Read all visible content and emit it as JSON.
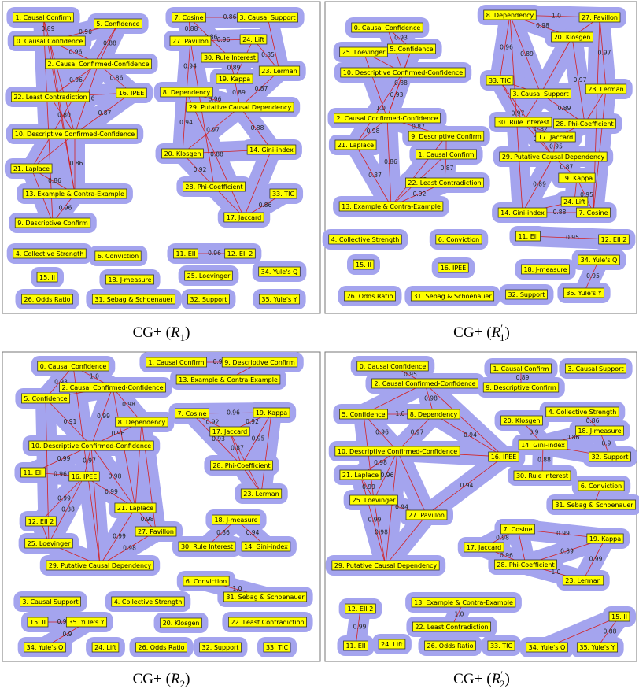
{
  "panels": [
    {
      "caption": {
        "prefix": "CG+",
        "open": "(",
        "symbol": "R",
        "prime": null,
        "subscript": "1",
        "close": ")"
      },
      "nodes": [
        "1. Causal Confirm",
        "5. Confidence",
        "0. Causal Confidence",
        "2. Causal Confirmed-Confidence",
        "22. Least Contradiction",
        "16. IPEE",
        "10. Descriptive Confirmed-Confidence",
        "21. Laplace",
        "13. Example & Contra-Example",
        "9. Descriptive Confirm",
        "4. Collective Strength",
        "6. Conviction",
        "15. II",
        "18. J-measure",
        "26. Odds Ratio",
        "31. Sebag & Schoenauer",
        "7. Cosine",
        "3. Causal Support",
        "27. Pavillon",
        "24. Lift",
        "30. Rule Interest",
        "23. Lerman",
        "19. Kappa",
        "8. Dependency",
        "29. Putative Causal Dependency",
        "20. Klosgen",
        "14. Gini-index",
        "28. Phi-Coefficient",
        "33. TIC",
        "17. Jaccard",
        "11. EII",
        "12. EII 2",
        "25. Loevinger",
        "34. Yule's Q",
        "32. Support",
        "35. Yule's Y"
      ],
      "edges": [
        {
          "from": 0,
          "to": 2,
          "label": "0.89"
        },
        {
          "from": 1,
          "to": 2,
          "label": "0.96"
        },
        {
          "from": 1,
          "to": 3,
          "label": "0.88"
        },
        {
          "from": 0,
          "to": 9
        },
        {
          "from": 2,
          "to": 3,
          "label": "0.96"
        },
        {
          "from": 3,
          "to": 4,
          "label": "0.96"
        },
        {
          "from": 3,
          "to": 6,
          "label": "0.86"
        },
        {
          "from": 2,
          "to": 6
        },
        {
          "from": 4,
          "to": 6,
          "label": "0.80"
        },
        {
          "from": 6,
          "to": 7
        },
        {
          "from": 6,
          "to": 8,
          "label": "0.86"
        },
        {
          "from": 7,
          "to": 8,
          "label": "0.86"
        },
        {
          "from": 8,
          "to": 9,
          "label": "0.96"
        },
        {
          "from": 0,
          "to": 8
        },
        {
          "from": 2,
          "to": 8
        },
        {
          "from": 1,
          "to": 7
        },
        {
          "from": 5,
          "to": 6,
          "label": "0.87"
        },
        {
          "from": 4,
          "to": 5
        },
        {
          "from": 7,
          "to": 9
        },
        {
          "from": 3,
          "to": 5,
          "label": "0.86"
        },
        {
          "from": 16,
          "to": 18,
          "label": "0.88"
        },
        {
          "from": 16,
          "to": 20,
          "label": "0.86"
        },
        {
          "from": 18,
          "to": 19,
          "label": "0.96"
        },
        {
          "from": 19,
          "to": 21,
          "label": "0.85"
        },
        {
          "from": 20,
          "to": 22,
          "label": "0.89"
        },
        {
          "from": 18,
          "to": 23,
          "label": "0.94"
        },
        {
          "from": 22,
          "to": 24,
          "label": "0.89"
        },
        {
          "from": 23,
          "to": 24,
          "label": "0.96"
        },
        {
          "from": 23,
          "to": 25,
          "label": "0.94"
        },
        {
          "from": 24,
          "to": 25,
          "label": "0.97"
        },
        {
          "from": 24,
          "to": 26,
          "label": "0.88"
        },
        {
          "from": 25,
          "to": 27,
          "label": "0.92"
        },
        {
          "from": 27,
          "to": 29
        },
        {
          "from": 26,
          "to": 29
        },
        {
          "from": 23,
          "to": 29,
          "label": "0.88"
        },
        {
          "from": 29,
          "to": 28,
          "label": "0.86"
        },
        {
          "from": 25,
          "to": 26
        },
        {
          "from": 21,
          "to": 24,
          "label": "0.87"
        },
        {
          "from": 16,
          "to": 17,
          "label": "0.86"
        },
        {
          "from": 17,
          "to": 21
        },
        {
          "from": 19,
          "to": 22,
          "label": "0.95"
        },
        {
          "from": 18,
          "to": 27
        },
        {
          "from": 30,
          "to": 31,
          "label": "0.96"
        }
      ]
    },
    {
      "caption": {
        "prefix": "CG+",
        "open": "(",
        "symbol": "R",
        "prime": "′",
        "subscript": "1",
        "close": ")"
      },
      "nodes": [
        "8. Dependency",
        "27. Pavillon",
        "0. Causal Confidence",
        "5. Confidence",
        "25. Loevinger",
        "20. Klosgen",
        "10. Descriptive Confirmed-Confidence",
        "33. TIC",
        "3. Causal Support",
        "23. Lerman",
        "2. Causal Confirmed-Confidence",
        "30. Rule Interest",
        "28. Phi-Coefficient",
        "9. Descriptive Confirm",
        "21. Laplace",
        "17. Jaccard",
        "1. Causal Confirm",
        "29. Putative Causal Dependency",
        "22. Least Contradiction",
        "19. Kappa",
        "24. Lift",
        "13. Example & Contra-Example",
        "14. Gini-index",
        "7. Cosine",
        "4. Collective Strength",
        "6. Conviction",
        "11. EII",
        "12. EII 2",
        "15. II",
        "16. IPEE",
        "18. J-measure",
        "34. Yule's Q",
        "26. Odds Ratio",
        "31. Sebag & Schoenauer",
        "32. Support",
        "35. Yule's Y"
      ],
      "edges": [
        {
          "from": 2,
          "to": 3,
          "label": "0.93"
        },
        {
          "from": 2,
          "to": 6,
          "label": "0.87"
        },
        {
          "from": 3,
          "to": 6
        },
        {
          "from": 4,
          "to": 6
        },
        {
          "from": 6,
          "to": 10,
          "label": "0.93"
        },
        {
          "from": 3,
          "to": 10,
          "label": "0.88"
        },
        {
          "from": 10,
          "to": 13,
          "label": "0.87"
        },
        {
          "from": 10,
          "to": 14,
          "label": "0.98"
        },
        {
          "from": 10,
          "to": 21,
          "label": "0.86"
        },
        {
          "from": 14,
          "to": 21,
          "label": "0.87"
        },
        {
          "from": 13,
          "to": 16
        },
        {
          "from": 16,
          "to": 18,
          "label": "0.87"
        },
        {
          "from": 13,
          "to": 21
        },
        {
          "from": 18,
          "to": 21,
          "label": "0.92"
        },
        {
          "from": 4,
          "to": 10
        },
        {
          "from": 6,
          "to": 14,
          "label": "1.0"
        },
        {
          "from": 16,
          "to": 21,
          "label": "0.85"
        },
        {
          "from": 0,
          "to": 1,
          "label": "1.0"
        },
        {
          "from": 0,
          "to": 5,
          "label": "0.98"
        },
        {
          "from": 0,
          "to": 7,
          "label": "0.96"
        },
        {
          "from": 0,
          "to": 8,
          "label": "0.89"
        },
        {
          "from": 1,
          "to": 5
        },
        {
          "from": 1,
          "to": 9,
          "label": "0.97"
        },
        {
          "from": 5,
          "to": 8
        },
        {
          "from": 7,
          "to": 8
        },
        {
          "from": 8,
          "to": 11
        },
        {
          "from": 8,
          "to": 12,
          "label": "0.89"
        },
        {
          "from": 7,
          "to": 11
        },
        {
          "from": 9,
          "to": 12
        },
        {
          "from": 11,
          "to": 15,
          "label": "0.82"
        },
        {
          "from": 12,
          "to": 15
        },
        {
          "from": 11,
          "to": 17,
          "label": "0.92"
        },
        {
          "from": 15,
          "to": 17,
          "label": "0.95"
        },
        {
          "from": 17,
          "to": 19,
          "label": "0.87"
        },
        {
          "from": 19,
          "to": 20
        },
        {
          "from": 17,
          "to": 22,
          "label": "0.89"
        },
        {
          "from": 22,
          "to": 23,
          "label": "0.88"
        },
        {
          "from": 19,
          "to": 23,
          "label": "0.95"
        },
        {
          "from": 20,
          "to": 22
        },
        {
          "from": 0,
          "to": 22,
          "label": "0.97"
        },
        {
          "from": 1,
          "to": 23
        },
        {
          "from": 7,
          "to": 17
        },
        {
          "from": 5,
          "to": 12,
          "label": "0.97"
        },
        {
          "from": 9,
          "to": 23
        },
        {
          "from": 26,
          "to": 27,
          "label": "0.95"
        },
        {
          "from": 31,
          "to": 35,
          "label": "0.95"
        }
      ]
    },
    {
      "caption": {
        "prefix": "CG+",
        "open": "(",
        "symbol": "R",
        "prime": null,
        "subscript": "2",
        "close": ")"
      },
      "nodes": [
        "0. Causal Confidence",
        "1. Causal Confirm",
        "9. Descriptive Confirm",
        "13. Example & Contra-Example",
        "2. Causal Confirmed-Confidence",
        "5. Confidence",
        "8. Dependency",
        "7. Cosine",
        "19. Kappa",
        "17. Jaccard",
        "10. Descriptive Confirmed-Confidence",
        "11. EII",
        "16. IPEE",
        "28. Phi-Coefficient",
        "21. Laplace",
        "23. Lerman",
        "12. EII 2",
        "27. Pavillon",
        "18. J-measure",
        "25. Loevinger",
        "30. Rule Interest",
        "14. Gini-index",
        "29. Putative Causal Dependency",
        "6. Conviction",
        "31. Sebag & Schoenauer",
        "3. Causal Support",
        "4. Collective Strength",
        "15. II",
        "35. Yule's Y",
        "20. Klosgen",
        "22. Least Contradiction",
        "34. Yule's Q",
        "24. Lift",
        "26. Odds Ratio",
        "32. Support",
        "33. TIC"
      ],
      "edges": [
        {
          "from": 0,
          "to": 4,
          "label": "1.0"
        },
        {
          "from": 0,
          "to": 5,
          "label": "0.93"
        },
        {
          "from": 4,
          "to": 5
        },
        {
          "from": 4,
          "to": 6,
          "label": "0.98"
        },
        {
          "from": 4,
          "to": 10,
          "label": "0.99"
        },
        {
          "from": 5,
          "to": 10,
          "label": "0.91"
        },
        {
          "from": 6,
          "to": 10,
          "label": "0.96"
        },
        {
          "from": 10,
          "to": 11,
          "label": "0.99"
        },
        {
          "from": 10,
          "to": 12,
          "label": "0.97"
        },
        {
          "from": 11,
          "to": 12,
          "label": "0.96"
        },
        {
          "from": 12,
          "to": 14,
          "label": "0.99"
        },
        {
          "from": 10,
          "to": 14,
          "label": "0.98"
        },
        {
          "from": 6,
          "to": 14
        },
        {
          "from": 14,
          "to": 17,
          "label": "0.98"
        },
        {
          "from": 12,
          "to": 16,
          "label": "0.99"
        },
        {
          "from": 16,
          "to": 19
        },
        {
          "from": 19,
          "to": 22
        },
        {
          "from": 14,
          "to": 22,
          "label": "0.99"
        },
        {
          "from": 17,
          "to": 22,
          "label": "0.98"
        },
        {
          "from": 12,
          "to": 19,
          "label": "0.88"
        },
        {
          "from": 5,
          "to": 19
        },
        {
          "from": 4,
          "to": 14,
          "label": "0.97"
        },
        {
          "from": 0,
          "to": 22
        },
        {
          "from": 6,
          "to": 17
        },
        {
          "from": 10,
          "to": 22
        },
        {
          "from": 1,
          "to": 2,
          "label": "0.94"
        },
        {
          "from": 2,
          "to": 3
        },
        {
          "from": 7,
          "to": 8,
          "label": "0.96"
        },
        {
          "from": 7,
          "to": 9,
          "label": "0.92"
        },
        {
          "from": 8,
          "to": 9,
          "label": "0.92"
        },
        {
          "from": 9,
          "to": 13,
          "label": "0.87"
        },
        {
          "from": 8,
          "to": 13,
          "label": "0.95"
        },
        {
          "from": 7,
          "to": 13,
          "label": "0.93"
        },
        {
          "from": 13,
          "to": 15
        },
        {
          "from": 9,
          "to": 15
        },
        {
          "from": 8,
          "to": 15
        },
        {
          "from": 18,
          "to": 20,
          "label": "0.86"
        },
        {
          "from": 18,
          "to": 21,
          "label": "0.94"
        },
        {
          "from": 23,
          "to": 24,
          "label": "1.0"
        },
        {
          "from": 27,
          "to": 28,
          "label": "0.96"
        },
        {
          "from": 28,
          "to": 31,
          "label": "0.9"
        }
      ]
    },
    {
      "caption": {
        "prefix": "CG+",
        "open": "(",
        "symbol": "R",
        "prime": "′",
        "subscript": "2",
        "close": ")"
      },
      "nodes": [
        "0. Causal Confidence",
        "1. Causal Confirm",
        "3. Causal Support",
        "9. Descriptive Confirm",
        "2. Causal Confirmed-Confidence",
        "4. Collective Strength",
        "8. Dependency",
        "5. Confidence",
        "20. Klosgen",
        "18. J-measure",
        "10. Descriptive Confirmed-Confidence",
        "16. IPEE",
        "14. Gini-index",
        "32. Support",
        "21. Laplace",
        "30. Rule Interest",
        "25. Loevinger",
        "6. Conviction",
        "27. Pavillon",
        "31. Sebag & Schoenauer",
        "7. Cosine",
        "19. Kappa",
        "17. Jaccard",
        "28. Phi-Coefficient",
        "23. Lerman",
        "29. Putative Causal Dependency",
        "13. Example & Contra-Example",
        "22. Least Contradiction",
        "12. EII 2",
        "15. II",
        "11. EII",
        "24. Lift",
        "26. Odds Ratio",
        "33. TIC",
        "34. Yule's Q",
        "35. Yule's Y"
      ],
      "edges": [
        {
          "from": 0,
          "to": 4,
          "label": "0.95"
        },
        {
          "from": 4,
          "to": 6,
          "label": "0.98"
        },
        {
          "from": 4,
          "to": 7
        },
        {
          "from": 6,
          "to": 7,
          "label": "1.0"
        },
        {
          "from": 6,
          "to": 10,
          "label": "0.97"
        },
        {
          "from": 7,
          "to": 10,
          "label": "0.96"
        },
        {
          "from": 10,
          "to": 11,
          "label": "0.98"
        },
        {
          "from": 6,
          "to": 11,
          "label": "0.94"
        },
        {
          "from": 4,
          "to": 11
        },
        {
          "from": 10,
          "to": 14,
          "label": "0.98"
        },
        {
          "from": 14,
          "to": 16,
          "label": "0.99"
        },
        {
          "from": 10,
          "to": 16,
          "label": "0.96"
        },
        {
          "from": 16,
          "to": 18,
          "label": "0.94"
        },
        {
          "from": 11,
          "to": 18,
          "label": "0.94"
        },
        {
          "from": 16,
          "to": 25,
          "label": "0.98"
        },
        {
          "from": 18,
          "to": 25
        },
        {
          "from": 10,
          "to": 25
        },
        {
          "from": 14,
          "to": 25,
          "label": "0.99"
        },
        {
          "from": 7,
          "to": 16
        },
        {
          "from": 10,
          "to": 18
        },
        {
          "from": 1,
          "to": 3,
          "label": "0.89"
        },
        {
          "from": 8,
          "to": 12,
          "label": "0.9"
        },
        {
          "from": 5,
          "to": 9,
          "label": "0.86"
        },
        {
          "from": 9,
          "to": 12,
          "label": "0.86"
        },
        {
          "from": 12,
          "to": 15,
          "label": "0.88"
        },
        {
          "from": 9,
          "to": 13,
          "label": "0.9"
        },
        {
          "from": 12,
          "to": 13
        },
        {
          "from": 17,
          "to": 19
        },
        {
          "from": 20,
          "to": 21,
          "label": "0.99"
        },
        {
          "from": 20,
          "to": 22,
          "label": "0.98"
        },
        {
          "from": 22,
          "to": 23,
          "label": "0.96"
        },
        {
          "from": 20,
          "to": 23
        },
        {
          "from": 21,
          "to": 24,
          "label": "0.99"
        },
        {
          "from": 23,
          "to": 24,
          "label": "1.0"
        },
        {
          "from": 21,
          "to": 23,
          "label": "0.89"
        },
        {
          "from": 26,
          "to": 27,
          "label": "1.0"
        },
        {
          "from": 28,
          "to": 30,
          "label": "0.99"
        },
        {
          "from": 29,
          "to": 35,
          "label": "0.88"
        },
        {
          "from": 29,
          "to": 34
        }
      ]
    }
  ]
}
